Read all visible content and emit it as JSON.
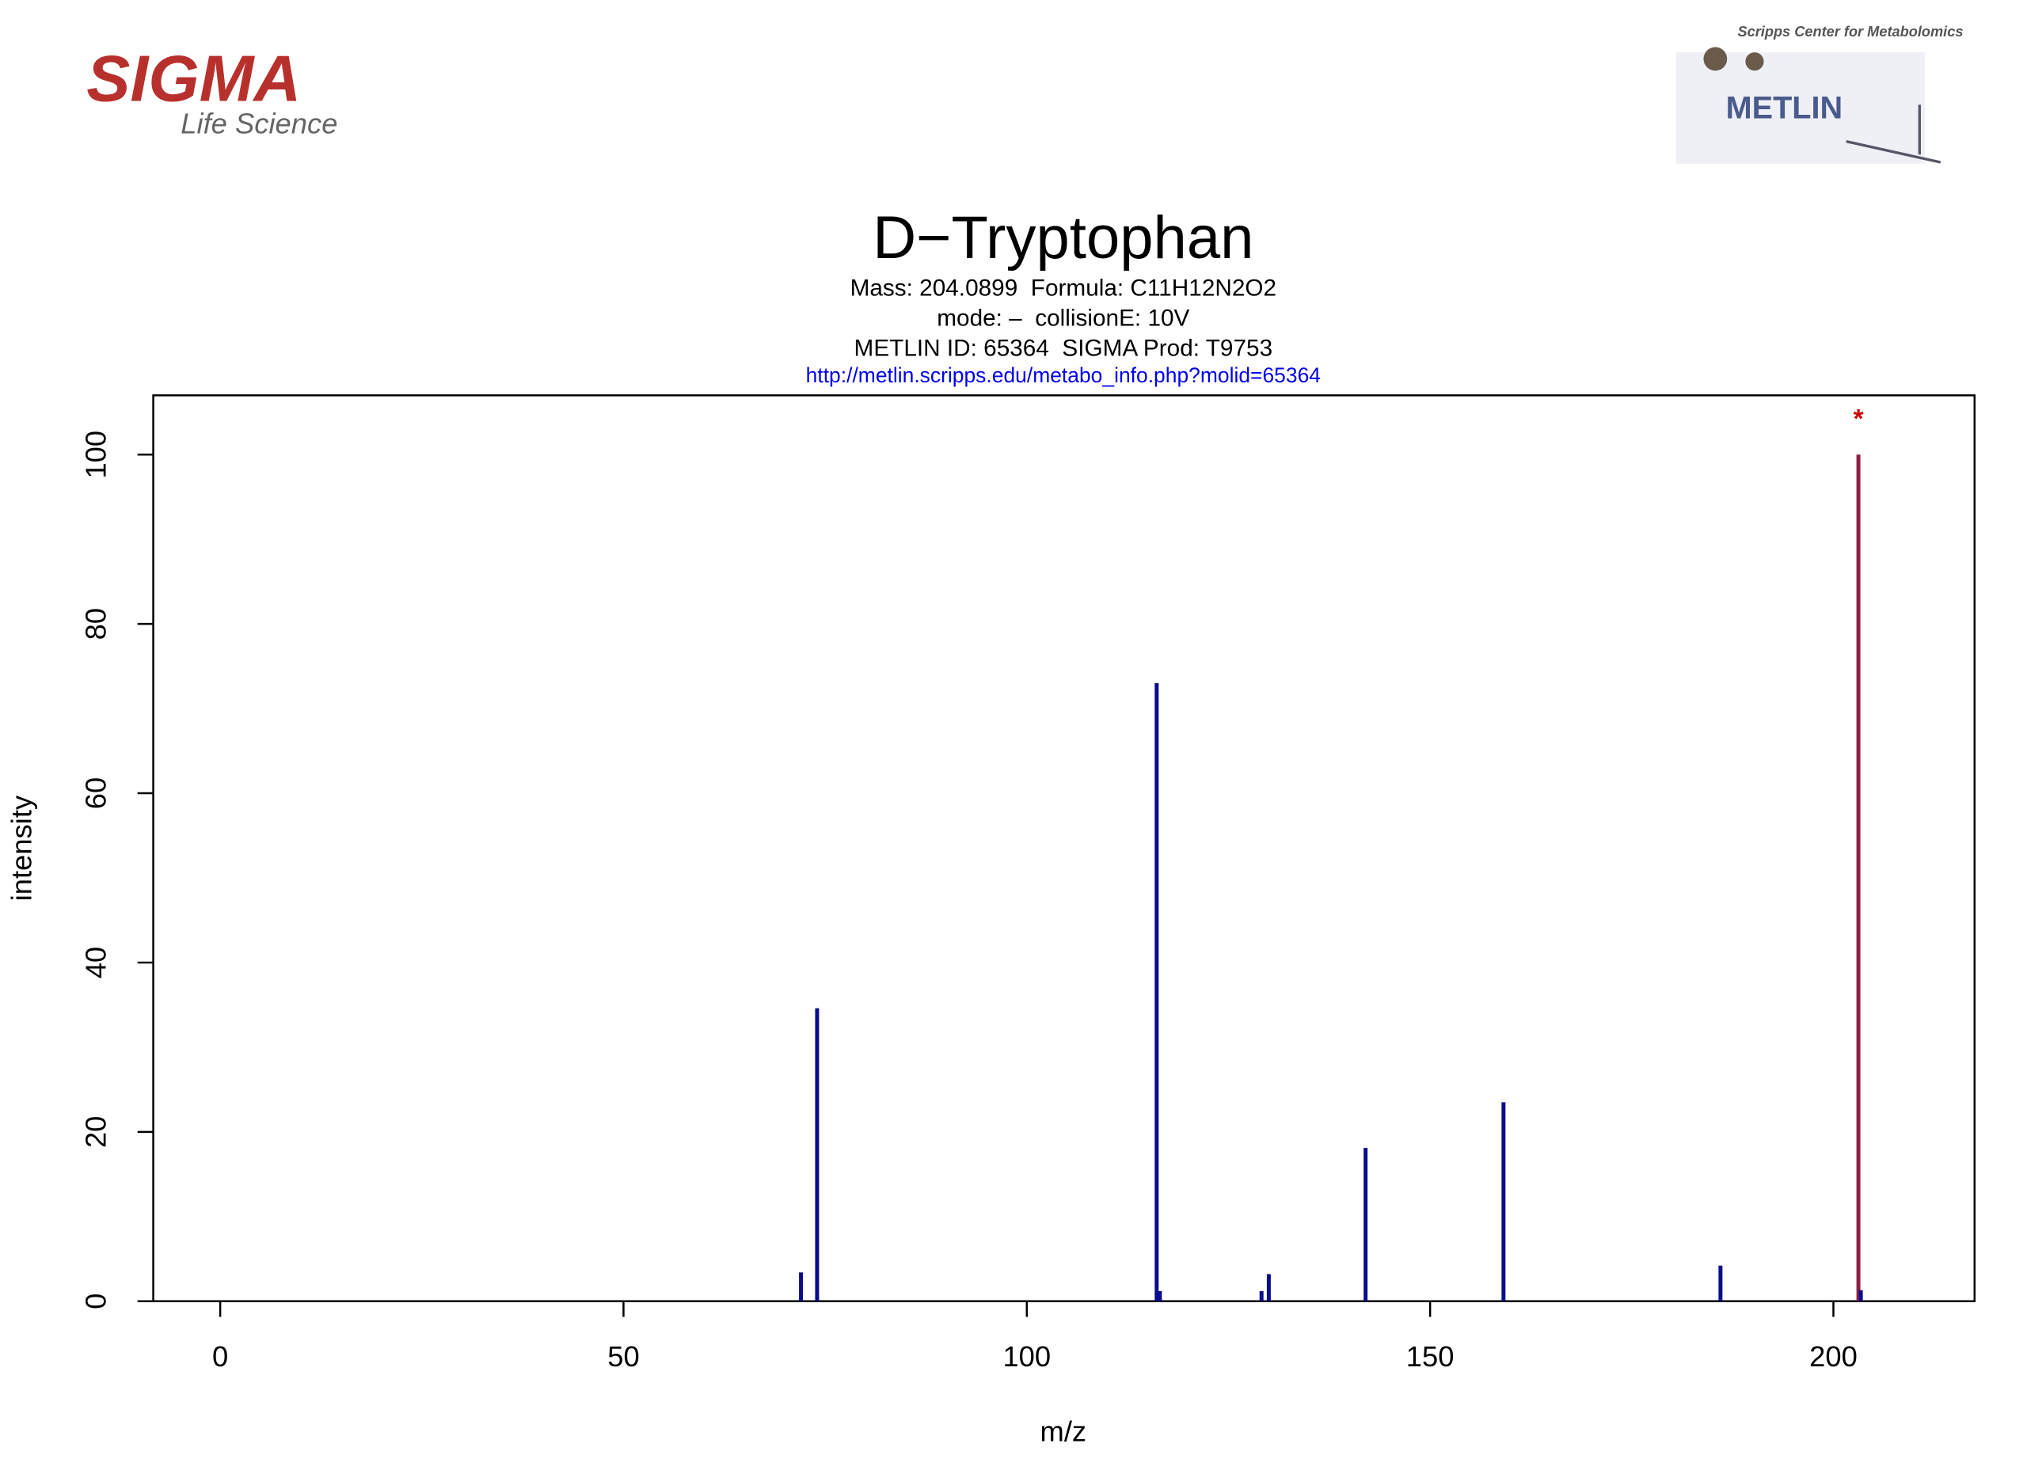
{
  "logos": {
    "left": {
      "brand": "SIGMA",
      "tagline": "Life Science"
    },
    "right": {
      "heading": "Scripps Center for Metabolomics",
      "brand": "METLIN"
    }
  },
  "chart_data": {
    "type": "stick",
    "title": "D−Tryptophan",
    "subtitle": [
      "Mass: 204.0899  Formula: C11H12N2O2",
      "mode: –  collisionE: 10V",
      "METLIN ID: 65364  SIGMA Prod: T9753"
    ],
    "link": "http://metlin.scripps.edu/metabo_info.php?molid=65364",
    "x_label": "m/z",
    "y_label": "intensity",
    "x": [
      72.0,
      74.0,
      116.1,
      116.5,
      129.1,
      130.0,
      142.0,
      159.1,
      186.0,
      203.1,
      203.4
    ],
    "values": [
      3.4,
      34.6,
      73.0,
      1.2,
      1.2,
      3.2,
      18.1,
      23.5,
      4.2,
      100,
      1.3
    ],
    "colors": [
      "#0a0a8c",
      "#0a0a8c",
      "#0a0a8c",
      "#0a0a8c",
      "#0a0a8c",
      "#0a0a8c",
      "#0a0a8c",
      "#0a0a8c",
      "#0a0a8c",
      "#8b1e46",
      "#0a0a8c"
    ],
    "annotations": [
      {
        "text": "*",
        "x": 203.1,
        "y": 100,
        "color": "#cc0000"
      }
    ],
    "xlim": [
      -8.3,
      217.5
    ],
    "ylim": [
      0,
      107
    ],
    "xticks": [
      0,
      50,
      100,
      150,
      200
    ],
    "yticks": [
      0,
      20,
      40,
      60,
      80,
      100
    ]
  }
}
